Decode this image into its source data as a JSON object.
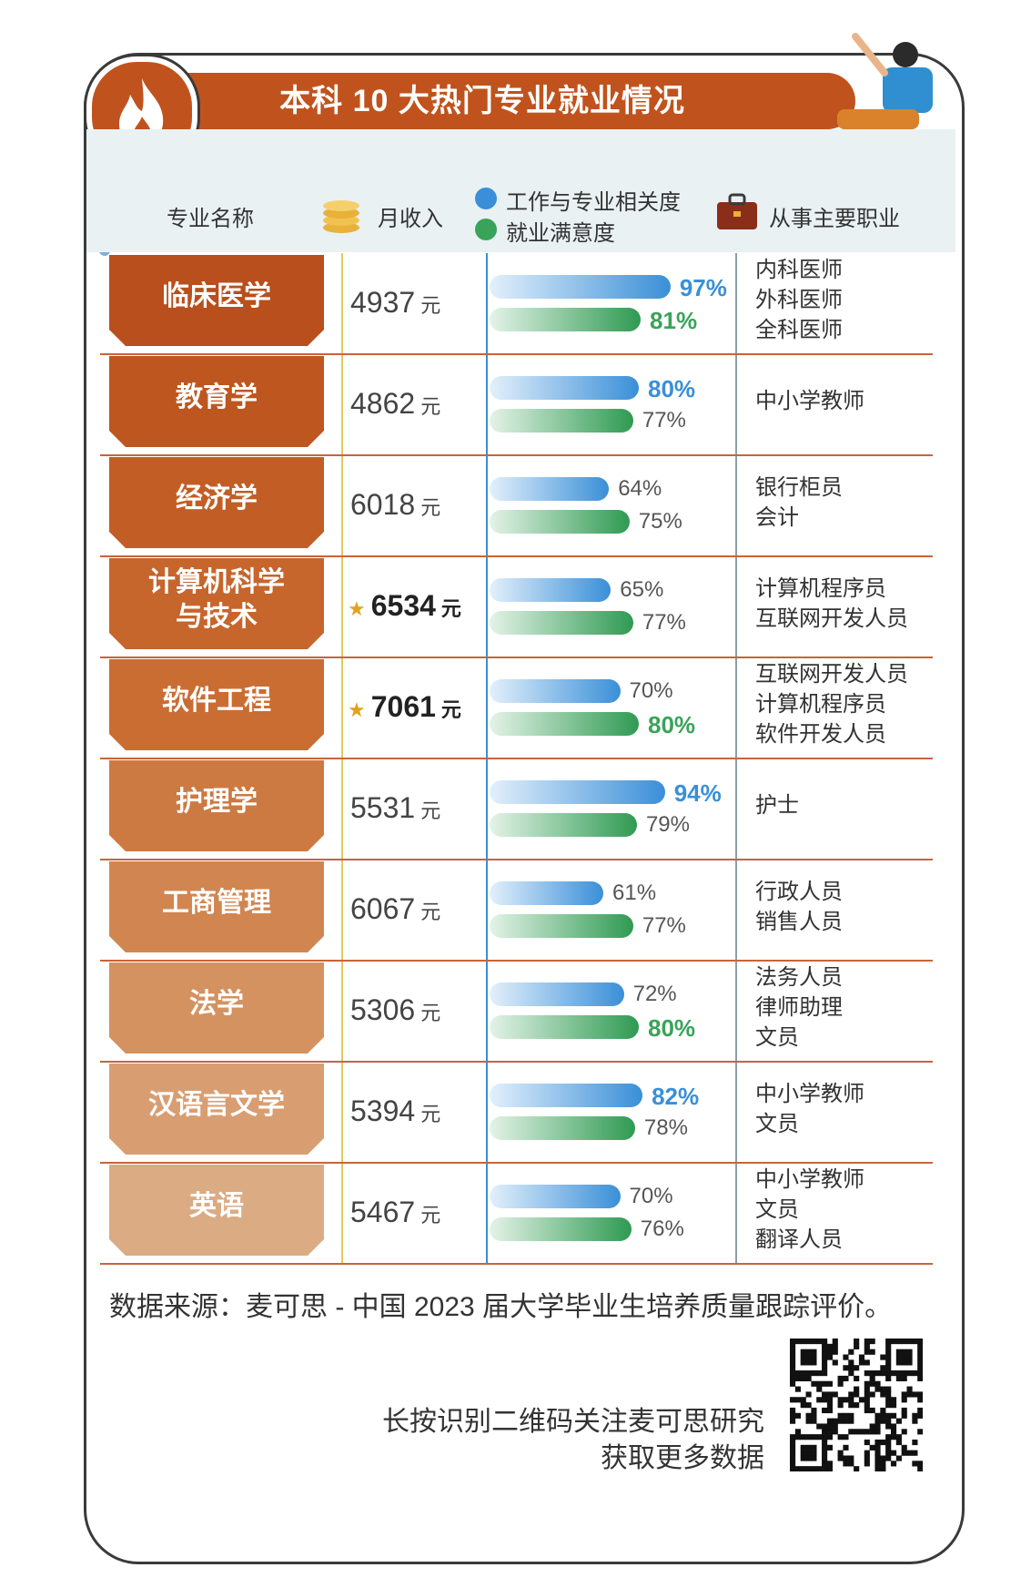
{
  "title": "本科 10 大热门专业就业情况",
  "headers": {
    "major": "专业名称",
    "salary": "月收入",
    "relevance": "工作与专业相关度",
    "satisfaction": "就业满意度",
    "jobs": "从事主要职业"
  },
  "unit": "元",
  "colors": {
    "brand": "#c0531d",
    "relevance": "#3a8fd8",
    "satisfaction": "#3aa35a",
    "star": "#e0a31d"
  },
  "chart_data": {
    "type": "table",
    "title": "本科 10 大热门专业就业情况",
    "rows": [
      {
        "major": [
          "临床医学"
        ],
        "salary": "4937",
        "highlight": false,
        "relevance": 97,
        "satisfaction": 81,
        "jobs": [
          "内科医师",
          "外科医师",
          "全科医师"
        ]
      },
      {
        "major": [
          "教育学"
        ],
        "salary": "4862",
        "highlight": false,
        "relevance": 80,
        "satisfaction": 77,
        "jobs": [
          "中小学教师"
        ]
      },
      {
        "major": [
          "经济学"
        ],
        "salary": "6018",
        "highlight": false,
        "relevance": 64,
        "satisfaction": 75,
        "jobs": [
          "银行柜员",
          "会计"
        ]
      },
      {
        "major": [
          "计算机科学",
          "与技术"
        ],
        "salary": "6534",
        "highlight": true,
        "relevance": 65,
        "satisfaction": 77,
        "jobs": [
          "计算机程序员",
          "互联网开发人员"
        ]
      },
      {
        "major": [
          "软件工程"
        ],
        "salary": "7061",
        "highlight": true,
        "relevance": 70,
        "satisfaction": 80,
        "jobs": [
          "互联网开发人员",
          "计算机程序员",
          "软件开发人员"
        ]
      },
      {
        "major": [
          "护理学"
        ],
        "salary": "5531",
        "highlight": false,
        "relevance": 94,
        "satisfaction": 79,
        "jobs": [
          "护士"
        ]
      },
      {
        "major": [
          "工商管理"
        ],
        "salary": "6067",
        "highlight": false,
        "relevance": 61,
        "satisfaction": 77,
        "jobs": [
          "行政人员",
          "销售人员"
        ]
      },
      {
        "major": [
          "法学"
        ],
        "salary": "5306",
        "highlight": false,
        "relevance": 72,
        "satisfaction": 80,
        "jobs": [
          "法务人员",
          "律师助理",
          "文员"
        ]
      },
      {
        "major": [
          "汉语言文学"
        ],
        "salary": "5394",
        "highlight": false,
        "relevance": 82,
        "satisfaction": 78,
        "jobs": [
          "中小学教师",
          "文员"
        ]
      },
      {
        "major": [
          "英语"
        ],
        "salary": "5467",
        "highlight": false,
        "relevance": 70,
        "satisfaction": 76,
        "jobs": [
          "中小学教师",
          "文员",
          "翻译人员"
        ]
      }
    ]
  },
  "source": "数据来源：麦可思 - 中国 2023 届大学毕业生培养质量跟踪评价。",
  "qr_line1": "长按识别二维码关注麦可思研究",
  "qr_line2": "获取更多数据",
  "watermark": "麦可思研究"
}
